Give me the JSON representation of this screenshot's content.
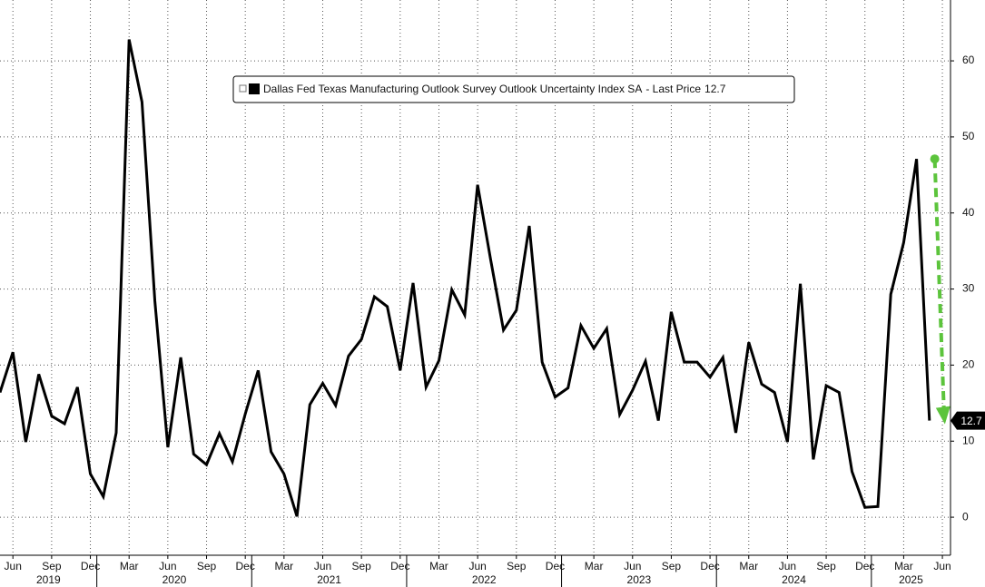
{
  "chart_data": {
    "type": "line",
    "legend_suffix": "- Last Price",
    "x": [
      "2019-05",
      "2019-06",
      "2019-07",
      "2019-08",
      "2019-09",
      "2019-10",
      "2019-11",
      "2019-12",
      "2020-01",
      "2020-02",
      "2020-03",
      "2020-04",
      "2020-05",
      "2020-06",
      "2020-07",
      "2020-08",
      "2020-09",
      "2020-10",
      "2020-11",
      "2020-12",
      "2021-01",
      "2021-02",
      "2021-03",
      "2021-04",
      "2021-05",
      "2021-06",
      "2021-07",
      "2021-08",
      "2021-09",
      "2021-10",
      "2021-11",
      "2021-12",
      "2022-01",
      "2022-02",
      "2022-03",
      "2022-04",
      "2022-05",
      "2022-06",
      "2022-07",
      "2022-08",
      "2022-09",
      "2022-10",
      "2022-11",
      "2022-12",
      "2023-01",
      "2023-02",
      "2023-03",
      "2023-04",
      "2023-05",
      "2023-06",
      "2023-07",
      "2023-08",
      "2023-09",
      "2023-10",
      "2023-11",
      "2023-12",
      "2024-01",
      "2024-02",
      "2024-03",
      "2024-04",
      "2024-05",
      "2024-06",
      "2024-07",
      "2024-08",
      "2024-09",
      "2024-10",
      "2024-11",
      "2024-12",
      "2025-01",
      "2025-02",
      "2025-03",
      "2025-04",
      "2025-05"
    ],
    "series": [
      {
        "name": "Dallas Fed Texas Manufacturing Outlook Survey Outlook Uncertainty Index SA",
        "color": "#000000",
        "values": [
          16.4,
          21.7,
          9.9,
          18.8,
          13.3,
          12.3,
          17.1,
          5.7,
          2.7,
          11.1,
          62.8,
          54.6,
          28.4,
          9.2,
          21.0,
          8.3,
          6.9,
          11.0,
          7.3,
          13.6,
          19.3,
          8.6,
          5.7,
          0.1,
          14.8,
          17.6,
          14.7,
          21.2,
          23.4,
          29.0,
          27.7,
          19.3,
          30.8,
          17.1,
          20.6,
          29.9,
          26.6,
          43.7,
          33.9,
          24.6,
          27.2,
          38.3,
          20.4,
          15.8,
          17.0,
          25.2,
          22.2,
          24.8,
          13.5,
          16.7,
          20.5,
          12.7,
          27.0,
          20.4,
          20.4,
          18.4,
          21.0,
          11.1,
          23.0,
          17.5,
          16.4,
          9.9,
          30.7,
          7.6,
          17.3,
          16.4,
          6.0,
          1.3,
          1.4,
          29.3,
          36.1,
          47.1,
          12.7
        ]
      }
    ],
    "xticks": [
      {
        "value": "2019-06",
        "label": "Jun"
      },
      {
        "value": "2019-09",
        "label": "Sep"
      },
      {
        "value": "2019-12",
        "label": "Dec"
      },
      {
        "value": "2020-03",
        "label": "Mar"
      },
      {
        "value": "2020-06",
        "label": "Jun"
      },
      {
        "value": "2020-09",
        "label": "Sep"
      },
      {
        "value": "2020-12",
        "label": "Dec"
      },
      {
        "value": "2021-03",
        "label": "Mar"
      },
      {
        "value": "2021-06",
        "label": "Jun"
      },
      {
        "value": "2021-09",
        "label": "Sep"
      },
      {
        "value": "2021-12",
        "label": "Dec"
      },
      {
        "value": "2022-03",
        "label": "Mar"
      },
      {
        "value": "2022-06",
        "label": "Jun"
      },
      {
        "value": "2022-09",
        "label": "Sep"
      },
      {
        "value": "2022-12",
        "label": "Dec"
      },
      {
        "value": "2023-03",
        "label": "Mar"
      },
      {
        "value": "2023-06",
        "label": "Jun"
      },
      {
        "value": "2023-09",
        "label": "Sep"
      },
      {
        "value": "2023-12",
        "label": "Dec"
      },
      {
        "value": "2024-03",
        "label": "Mar"
      },
      {
        "value": "2024-06",
        "label": "Jun"
      },
      {
        "value": "2024-09",
        "label": "Sep"
      },
      {
        "value": "2024-12",
        "label": "Dec"
      },
      {
        "value": "2025-03",
        "label": "Mar"
      },
      {
        "value": "2025-06",
        "label": "Jun"
      }
    ],
    "years": [
      2019,
      2020,
      2021,
      2022,
      2023,
      2024,
      2025
    ],
    "ylim": [
      -5,
      68
    ],
    "yticks": [
      0,
      10,
      20,
      30,
      40,
      50,
      60
    ],
    "grid": true,
    "annotation_color": "#5cc43c"
  }
}
